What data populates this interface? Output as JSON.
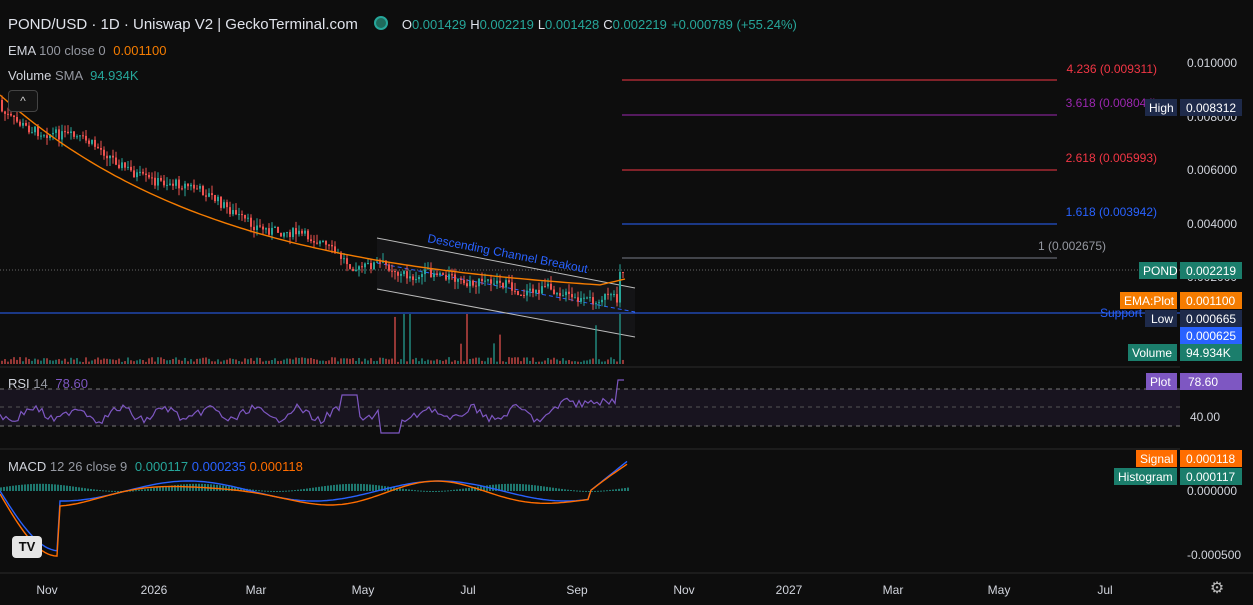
{
  "header": {
    "title": "POND/USD · 1D · Uniswap V2 | GeckoTerminal.com",
    "o_label": "O",
    "o_value": "0.001429",
    "h_label": "H",
    "h_value": "0.002219",
    "l_label": "L",
    "l_value": "0.001428",
    "c_label": "C",
    "c_value": "0.002219",
    "change": "+0.000789 (+55.24%)"
  },
  "indicators": {
    "ema_name": "EMA",
    "ema_params": "100 close 0",
    "ema_value": "0.001100",
    "volume_name": "Volume",
    "volume_params": "SMA",
    "volume_value": "94.934K",
    "rsi_name": "RSI",
    "rsi_params": "14",
    "rsi_value": "78.60",
    "macd_name": "MACD",
    "macd_params": "12 26 close 9",
    "macd_v1": "0.000117",
    "macd_v2": "0.000235",
    "macd_v3": "0.000118"
  },
  "price_axis": [
    "0.010000",
    "0.008000",
    "0.006000",
    "0.004000",
    "0.002000"
  ],
  "rsi_axis": [
    "40.00"
  ],
  "macd_axis": [
    "0.000000",
    "-0.000500"
  ],
  "time_axis": [
    "Nov",
    "2026",
    "Mar",
    "May",
    "Jul",
    "Sep",
    "Nov",
    "2027",
    "Mar",
    "May",
    "Jul"
  ],
  "fib_levels": [
    {
      "label": "4.236 (0.009311)",
      "color": "#f23645"
    },
    {
      "label": "3.618 (0.008044)",
      "color": "#9c27b0"
    },
    {
      "label": "2.618 (0.005993)",
      "color": "#f23645"
    },
    {
      "label": "1.618 (0.003942)",
      "color": "#2962ff"
    },
    {
      "label": "1 (0.002675)",
      "color": "#787b86"
    }
  ],
  "annotations": {
    "channel": "Descending Channel Breakout",
    "support": "Support"
  },
  "tags": {
    "high": {
      "name": "High",
      "value": "0.008312"
    },
    "pond": {
      "name": "POND",
      "value": "0.002219"
    },
    "ema": {
      "name": "EMA:Plot",
      "value": "0.001100"
    },
    "low": {
      "name": "Low",
      "value": "0.000665"
    },
    "level": {
      "value": "0.000625"
    },
    "volume": {
      "name": "Volume",
      "value": "94.934K"
    },
    "rsi": {
      "name": "Plot",
      "value": "78.60"
    },
    "signal": {
      "name": "Signal",
      "value": "0.000118"
    },
    "histogram": {
      "name": "Histogram",
      "value": "0.000117"
    }
  },
  "controls": {
    "collapse": "^",
    "logo": "TV",
    "settings": "⚙"
  },
  "colors": {
    "up": "#26a69a",
    "down": "#ef5350",
    "ema": "#f57c00",
    "rsi": "#7e57c2",
    "macd": "#2962ff",
    "signal": "#ff6d00"
  }
}
